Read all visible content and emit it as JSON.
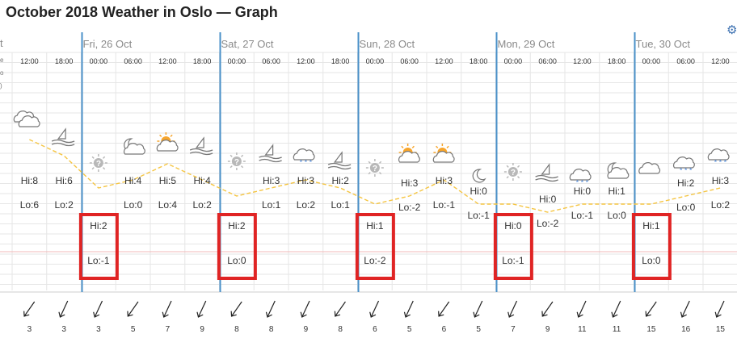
{
  "page": {
    "title": "October 2018 Weather in Oslo — Graph"
  },
  "toolbar": {
    "settings_icon": "gear-icon",
    "settings_glyph": "⚙"
  },
  "axis_stub": {
    "left_label": "t",
    "side_glyphs": [
      "e",
      "o",
      ")"
    ]
  },
  "colors": {
    "day_divider": "#4a90c8",
    "grid": "#e6e6e6",
    "temperature_line": "#f5c542",
    "highlight_box": "#e02424",
    "icon_grey": "#777777",
    "sun": "#f7a52c",
    "rain": "#3a7bd5"
  },
  "days": [
    {
      "label": "Fri, 26 Oct",
      "start_slot": 2
    },
    {
      "label": "Sat, 27 Oct",
      "start_slot": 6
    },
    {
      "label": "Sun, 28 Oct",
      "start_slot": 10
    },
    {
      "label": "Mon, 29 Oct",
      "start_slot": 14
    },
    {
      "label": "Tue, 30 Oct",
      "start_slot": 18
    }
  ],
  "slots": [
    {
      "time": "12:00",
      "icon": "partly-cloudy-icon",
      "hi": "Hi:8",
      "lo": "Lo:6",
      "wind": "3",
      "temp": 8,
      "highlight": false
    },
    {
      "time": "18:00",
      "icon": "windy-night-icon",
      "hi": "Hi:6",
      "lo": "Lo:2",
      "wind": "3",
      "temp": 6,
      "highlight": false
    },
    {
      "time": "00:00",
      "icon": "unknown-weather-icon",
      "hi": "Hi:2",
      "lo": "Lo:-1",
      "wind": "3",
      "temp": 2,
      "highlight": true
    },
    {
      "time": "06:00",
      "icon": "cloudy-night-icon",
      "hi": "Hi:4",
      "lo": "Lo:0",
      "wind": "5",
      "temp": 3,
      "highlight": false
    },
    {
      "time": "12:00",
      "icon": "sun-behind-cloud-icon",
      "hi": "Hi:5",
      "lo": "Lo:4",
      "wind": "7",
      "temp": 5,
      "highlight": false
    },
    {
      "time": "18:00",
      "icon": "windy-night-icon",
      "hi": "Hi:4",
      "lo": "Lo:2",
      "wind": "9",
      "temp": 3,
      "highlight": false
    },
    {
      "time": "00:00",
      "icon": "unknown-weather-icon",
      "hi": "Hi:2",
      "lo": "Lo:0",
      "wind": "8",
      "temp": 1,
      "highlight": true
    },
    {
      "time": "06:00",
      "icon": "windy-night-icon",
      "hi": "Hi:3",
      "lo": "Lo:1",
      "wind": "8",
      "temp": 2,
      "highlight": false
    },
    {
      "time": "12:00",
      "icon": "light-snow-icon",
      "hi": "Hi:3",
      "lo": "Lo:2",
      "wind": "9",
      "temp": 3,
      "highlight": false
    },
    {
      "time": "18:00",
      "icon": "windy-night-icon",
      "hi": "Hi:2",
      "lo": "Lo:1",
      "wind": "8",
      "temp": 2,
      "highlight": false
    },
    {
      "time": "00:00",
      "icon": "unknown-weather-icon",
      "hi": "Hi:1",
      "lo": "Lo:-2",
      "wind": "6",
      "temp": 0,
      "highlight": true
    },
    {
      "time": "06:00",
      "icon": "sun-behind-cloud-icon",
      "hi": "Hi:3",
      "lo": "Lo:-2",
      "wind": "5",
      "temp": 1,
      "highlight": false
    },
    {
      "time": "12:00",
      "icon": "sun-behind-cloud-icon",
      "hi": "Hi:3",
      "lo": "Lo:-1",
      "wind": "6",
      "temp": 3,
      "highlight": false
    },
    {
      "time": "18:00",
      "icon": "clear-night-icon",
      "hi": "Hi:0",
      "lo": "Lo:-1",
      "wind": "5",
      "temp": 0,
      "highlight": false
    },
    {
      "time": "00:00",
      "icon": "unknown-weather-icon",
      "hi": "Hi:0",
      "lo": "Lo:-1",
      "wind": "7",
      "temp": 0,
      "highlight": true
    },
    {
      "time": "06:00",
      "icon": "windy-night-icon",
      "hi": "Hi:0",
      "lo": "Lo:-2",
      "wind": "9",
      "temp": -1,
      "highlight": false
    },
    {
      "time": "12:00",
      "icon": "light-snow-icon",
      "hi": "Hi:0",
      "lo": "Lo:-1",
      "wind": "11",
      "temp": 0,
      "highlight": false
    },
    {
      "time": "18:00",
      "icon": "cloudy-night-icon",
      "hi": "Hi:1",
      "lo": "Lo:0",
      "wind": "11",
      "temp": 0,
      "highlight": false
    },
    {
      "time": "00:00",
      "icon": "overcast-icon",
      "hi": "Hi:1",
      "lo": "Lo:0",
      "wind": "15",
      "temp": 0,
      "highlight": true
    },
    {
      "time": "06:00",
      "icon": "light-snow-icon",
      "hi": "Hi:2",
      "lo": "Lo:0",
      "wind": "16",
      "temp": 1,
      "highlight": false
    },
    {
      "time": "12:00",
      "icon": "light-snow-icon",
      "hi": "Hi:3",
      "lo": "Lo:2",
      "wind": "15",
      "temp": 2,
      "highlight": false
    }
  ]
}
